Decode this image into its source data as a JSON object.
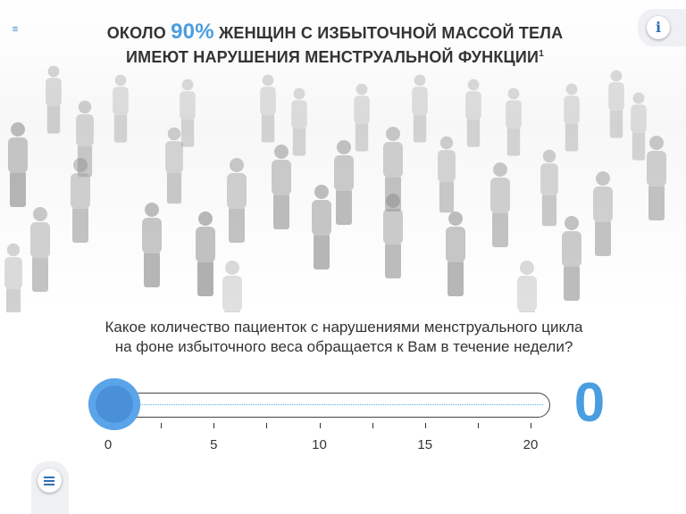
{
  "header": {
    "headline_prefix": "ОКОЛО",
    "headline_percent": "90%",
    "headline_line1_rest": "ЖЕНЩИН С ИЗБЫТОЧНОЙ МАССОЙ ТЕЛА",
    "headline_line2": "ИМЕЮТ НАРУШЕНИЯ МЕНСТРУАЛЬНОЙ ФУНКЦИИ",
    "footnote_mark": "1",
    "menu_glyph": "≡"
  },
  "info_button": {
    "label": "i",
    "icon": "info-icon"
  },
  "question": {
    "line1": "Какое количество пациенток с нарушениями менструального цикла",
    "line2": "на фоне избыточного веса обращается к Вам в течение недели?"
  },
  "slider": {
    "min": 0,
    "max": 20,
    "value": 0,
    "labels": [
      "0",
      "5",
      "10",
      "15",
      "20"
    ],
    "accent_color": "#4a90d9"
  },
  "value_display": "0",
  "bottom_button": {
    "icon": "list-icon"
  }
}
